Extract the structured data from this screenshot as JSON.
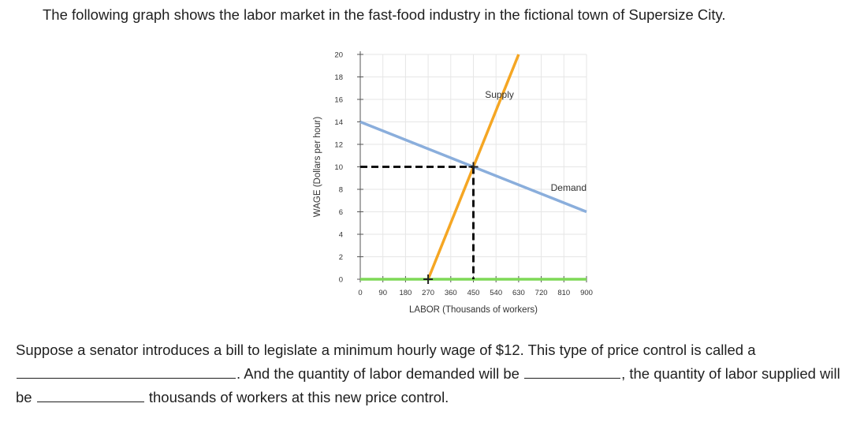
{
  "intro_text": "The following graph shows the labor market in the fast-food industry in the fictional town of Supersize City.",
  "chart_data": {
    "type": "line",
    "xlabel": "LABOR (Thousands of workers)",
    "ylabel": "WAGE (Dollars per hour)",
    "x_ticks": [
      0,
      90,
      180,
      270,
      360,
      450,
      540,
      630,
      720,
      810,
      900
    ],
    "y_ticks": [
      0,
      2,
      4,
      6,
      8,
      10,
      12,
      14,
      16,
      18,
      20
    ],
    "xlim": [
      0,
      900
    ],
    "ylim": [
      0,
      20
    ],
    "grid": true,
    "series": [
      {
        "name": "Supply",
        "color": "#f5a623",
        "x": [
          270,
          630
        ],
        "y": [
          0,
          20
        ]
      },
      {
        "name": "Demand",
        "color": "#8aaedc",
        "x": [
          0,
          900
        ],
        "y": [
          14,
          6
        ]
      },
      {
        "name": "",
        "color": "#7ed957",
        "x": [
          0,
          900
        ],
        "y": [
          0,
          0
        ]
      }
    ],
    "equilibrium": {
      "x": 450,
      "y": 10
    },
    "marker_points": [
      {
        "x": 270,
        "y": 0
      },
      {
        "x": 450,
        "y": 10
      }
    ]
  },
  "question": {
    "part1": "Suppose a senator introduces a bill to legislate a minimum hourly wage of $12. This type of price control is called a",
    "part2": ". And the quantity of labor demanded will be",
    "part3": ", the quantity of labor supplied will be",
    "part4": "thousands of workers at this new price control."
  }
}
